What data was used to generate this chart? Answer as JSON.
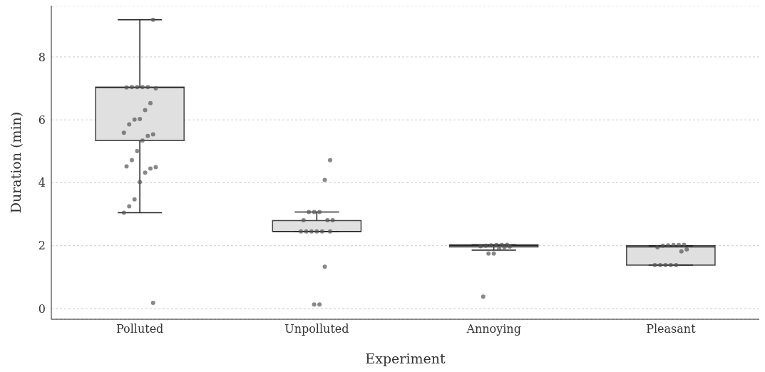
{
  "chart_data": {
    "type": "box",
    "xlabel": "Experiment",
    "ylabel": "Duration (min)",
    "categories": [
      "Polluted",
      "Unpolluted",
      "Annoying",
      "Pleasant"
    ],
    "boxes": [
      {
        "low": 3.05,
        "q1": 5.34,
        "median": 7.03,
        "q3": 7.04,
        "high": 9.18
      },
      {
        "low": 2.45,
        "q1": 2.45,
        "median": 2.45,
        "q3": 2.8,
        "high": 3.07
      },
      {
        "low": 1.86,
        "q1": 1.96,
        "median": 2.0,
        "q3": 2.03,
        "high": 2.03
      },
      {
        "low": 1.38,
        "q1": 1.38,
        "median": 1.96,
        "q3": 2.0,
        "high": 2.0
      }
    ],
    "color": "#e0e0e0",
    "series": [
      {
        "type": "scatter",
        "color": "#555555",
        "x": [
          "Polluted",
          "Polluted",
          "Polluted",
          "Polluted",
          "Polluted",
          "Polluted",
          "Polluted",
          "Polluted",
          "Polluted",
          "Polluted",
          "Polluted",
          "Polluted",
          "Polluted",
          "Polluted",
          "Polluted",
          "Polluted",
          "Polluted",
          "Polluted",
          "Polluted",
          "Polluted",
          "Polluted",
          "Polluted",
          "Polluted",
          "Polluted",
          "Polluted",
          "Polluted",
          "Polluted",
          "Unpolluted",
          "Unpolluted",
          "Unpolluted",
          "Unpolluted",
          "Unpolluted",
          "Unpolluted",
          "Unpolluted",
          "Unpolluted",
          "Unpolluted",
          "Unpolluted",
          "Unpolluted",
          "Unpolluted",
          "Unpolluted",
          "Unpolluted",
          "Unpolluted",
          "Unpolluted",
          "Unpolluted",
          "Annoying",
          "Annoying",
          "Annoying",
          "Annoying",
          "Annoying",
          "Annoying",
          "Annoying",
          "Annoying",
          "Annoying",
          "Annoying",
          "Annoying",
          "Annoying",
          "Pleasant",
          "Pleasant",
          "Pleasant",
          "Pleasant",
          "Pleasant",
          "Pleasant",
          "Pleasant",
          "Pleasant",
          "Pleasant",
          "Pleasant",
          "Pleasant",
          "Pleasant",
          "Pleasant"
        ],
        "values": [
          9.18,
          7.04,
          7.04,
          7.04,
          7.04,
          7.03,
          7.0,
          6.53,
          6.31,
          6.03,
          6.01,
          5.86,
          5.59,
          5.54,
          5.49,
          5.34,
          5.01,
          4.72,
          4.52,
          4.5,
          4.45,
          4.32,
          4.02,
          3.47,
          3.25,
          3.05,
          0.18,
          4.72,
          4.09,
          3.07,
          3.07,
          3.07,
          2.81,
          2.81,
          2.81,
          2.45,
          2.45,
          2.45,
          2.45,
          2.45,
          2.45,
          1.33,
          0.13,
          0.13,
          2.03,
          2.02,
          2.02,
          2.01,
          2.0,
          1.98,
          1.97,
          1.95,
          1.9,
          1.75,
          1.75,
          0.38,
          2.03,
          2.02,
          2.02,
          2.01,
          2.0,
          1.95,
          1.88,
          1.82,
          1.38,
          1.38,
          1.38,
          1.38,
          1.38
        ]
      }
    ],
    "ylim": [
      -0.34,
      9.63
    ],
    "yticks": [
      0,
      2,
      4,
      6,
      8
    ],
    "grid": "y",
    "legend": false
  }
}
